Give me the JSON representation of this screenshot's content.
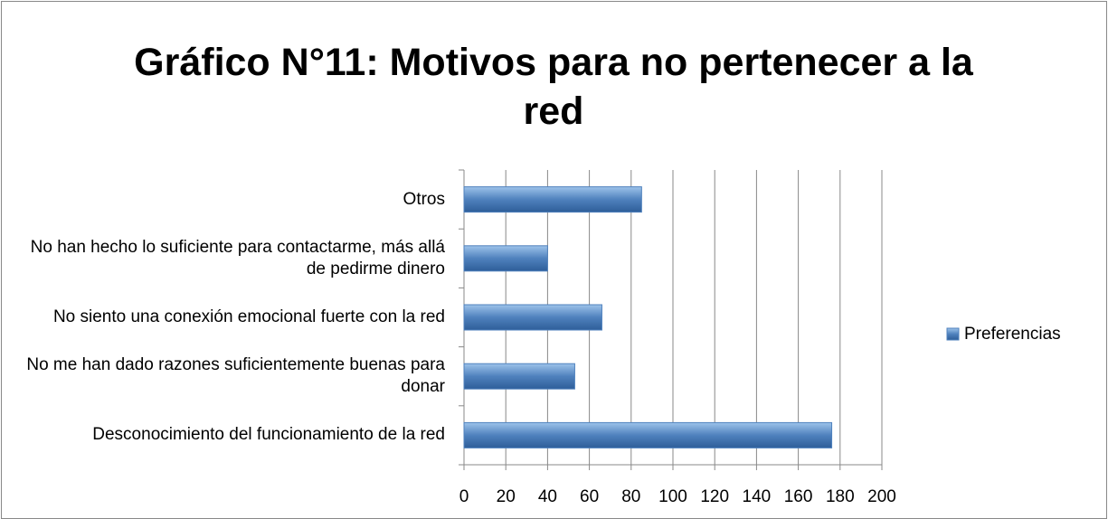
{
  "chart_data": {
    "type": "barh",
    "title": "Gráfico N°11: Motivos para no pertenecer a la red",
    "categories": [
      "Desconocimiento del funcionamiento de la red",
      "No me han dado razones suficientemente buenas para donar",
      "No siento una conexión emocional fuerte con la red",
      "No han hecho lo suficiente para contactarme, más allá de pedirme dinero",
      "Otros"
    ],
    "series": [
      {
        "name": "Preferencias",
        "color": "#4f81bd",
        "values": [
          176,
          53,
          66,
          40,
          85
        ]
      }
    ],
    "xlim": [
      0,
      200
    ],
    "xticks": [
      0,
      20,
      40,
      60,
      80,
      100,
      120,
      140,
      160,
      180,
      200
    ],
    "grid": true,
    "legend": "right"
  }
}
